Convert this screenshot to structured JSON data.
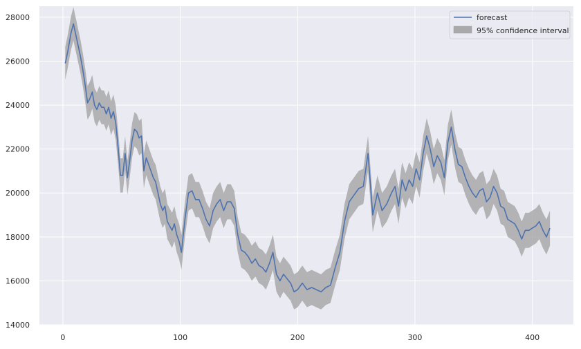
{
  "chart_data": {
    "type": "line",
    "title": "",
    "xlabel": "",
    "ylabel": "",
    "xlim": [
      -20,
      435
    ],
    "ylim": [
      14000,
      28500
    ],
    "xticks": [
      0,
      100,
      200,
      300,
      400
    ],
    "yticks": [
      14000,
      16000,
      18000,
      20000,
      22000,
      24000,
      26000,
      28000
    ],
    "grid": true,
    "legend_position": "top-right",
    "colors": {
      "background": "#eaeaf2",
      "grid": "#ffffff",
      "forecast": "#4c72b0",
      "interval": "#a9a9ab"
    },
    "series": [
      {
        "name": "forecast",
        "x": [
          2,
          4,
          7,
          9,
          11,
          13,
          15,
          17,
          19,
          21,
          23,
          25,
          27,
          29,
          31,
          33,
          35,
          37,
          39,
          41,
          43,
          45,
          47,
          49,
          51,
          53,
          55,
          57,
          59,
          61,
          63,
          65,
          67,
          69,
          71,
          73,
          75,
          77,
          79,
          81,
          83,
          85,
          87,
          89,
          91,
          93,
          95,
          97,
          99,
          101,
          104,
          107,
          110,
          113,
          116,
          119,
          122,
          125,
          128,
          131,
          134,
          137,
          140,
          143,
          146,
          149,
          152,
          155,
          158,
          161,
          164,
          167,
          170,
          173,
          176,
          179,
          182,
          185,
          188,
          191,
          194,
          197,
          200,
          204,
          208,
          212,
          216,
          220,
          224,
          228,
          232,
          236,
          240,
          244,
          248,
          252,
          256,
          260,
          264,
          268,
          272,
          276,
          280,
          283,
          286,
          289,
          292,
          295,
          298,
          301,
          304,
          307,
          310,
          313,
          316,
          319,
          322,
          325,
          328,
          331,
          334,
          337,
          340,
          343,
          346,
          349,
          352,
          355,
          358,
          361,
          364,
          367,
          370,
          373,
          376,
          379,
          382,
          385,
          388,
          391,
          394,
          397,
          400,
          403,
          406,
          409,
          412,
          415
        ],
        "y": [
          25900,
          26400,
          27300,
          27700,
          27200,
          26700,
          26200,
          25600,
          24900,
          24100,
          24300,
          24600,
          24000,
          23800,
          24100,
          23900,
          23900,
          23600,
          23900,
          23400,
          23700,
          23200,
          22100,
          20800,
          20800,
          21800,
          20700,
          21500,
          22400,
          22900,
          22800,
          22500,
          22600,
          21000,
          21600,
          21300,
          21000,
          20700,
          20500,
          20000,
          19500,
          19200,
          19400,
          18700,
          18500,
          18300,
          18600,
          18100,
          17800,
          17300,
          18800,
          20000,
          20100,
          19700,
          19700,
          19300,
          18800,
          18500,
          19200,
          19500,
          19700,
          19200,
          19600,
          19600,
          19300,
          18100,
          17400,
          17300,
          17100,
          16800,
          17000,
          16700,
          16600,
          16400,
          16800,
          17300,
          16300,
          16000,
          16300,
          16100,
          15900,
          15500,
          15600,
          15900,
          15600,
          15700,
          15600,
          15500,
          15700,
          15800,
          16600,
          17300,
          18700,
          19600,
          19900,
          20200,
          20300,
          21800,
          19000,
          20000,
          19200,
          19500,
          20000,
          20300,
          19400,
          20600,
          20100,
          20600,
          20300,
          21100,
          20600,
          21800,
          22600,
          22000,
          21200,
          21700,
          21400,
          20700,
          22300,
          23000,
          22000,
          21300,
          21200,
          20700,
          20300,
          20000,
          19800,
          20100,
          20200,
          19600,
          19800,
          20300,
          20000,
          19400,
          19300,
          18800,
          18700,
          18600,
          18300,
          17900,
          18300,
          18300,
          18400,
          18500,
          18700,
          18300,
          18000,
          18400
        ]
      },
      {
        "name": "95% confidence interval",
        "kind": "band",
        "half_width": [
          750,
          750,
          760,
          760,
          760,
          760,
          760,
          760,
          760,
          770,
          770,
          770,
          770,
          770,
          770,
          770,
          770,
          770,
          770,
          770,
          780,
          780,
          780,
          780,
          780,
          780,
          780,
          780,
          780,
          780,
          790,
          790,
          790,
          790,
          790,
          790,
          790,
          790,
          790,
          790,
          790,
          790,
          800,
          800,
          800,
          800,
          800,
          800,
          800,
          800,
          800,
          800,
          800,
          800,
          800,
          800,
          800,
          800,
          800,
          800,
          800,
          800,
          800,
          800,
          800,
          800,
          800,
          800,
          800,
          800,
          800,
          800,
          800,
          800,
          800,
          800,
          800,
          800,
          800,
          800,
          800,
          800,
          800,
          800,
          800,
          800,
          800,
          800,
          800,
          800,
          800,
          800,
          800,
          800,
          800,
          800,
          800,
          800,
          800,
          800,
          800,
          800,
          800,
          800,
          800,
          800,
          800,
          800,
          800,
          800,
          800,
          800,
          800,
          800,
          800,
          800,
          800,
          800,
          800,
          800,
          800,
          800,
          800,
          800,
          800,
          800,
          800,
          800,
          800,
          800,
          800,
          800,
          800,
          800,
          800,
          800,
          800,
          800,
          800,
          800,
          800,
          800,
          800,
          800,
          800,
          800,
          800,
          800
        ]
      }
    ]
  }
}
